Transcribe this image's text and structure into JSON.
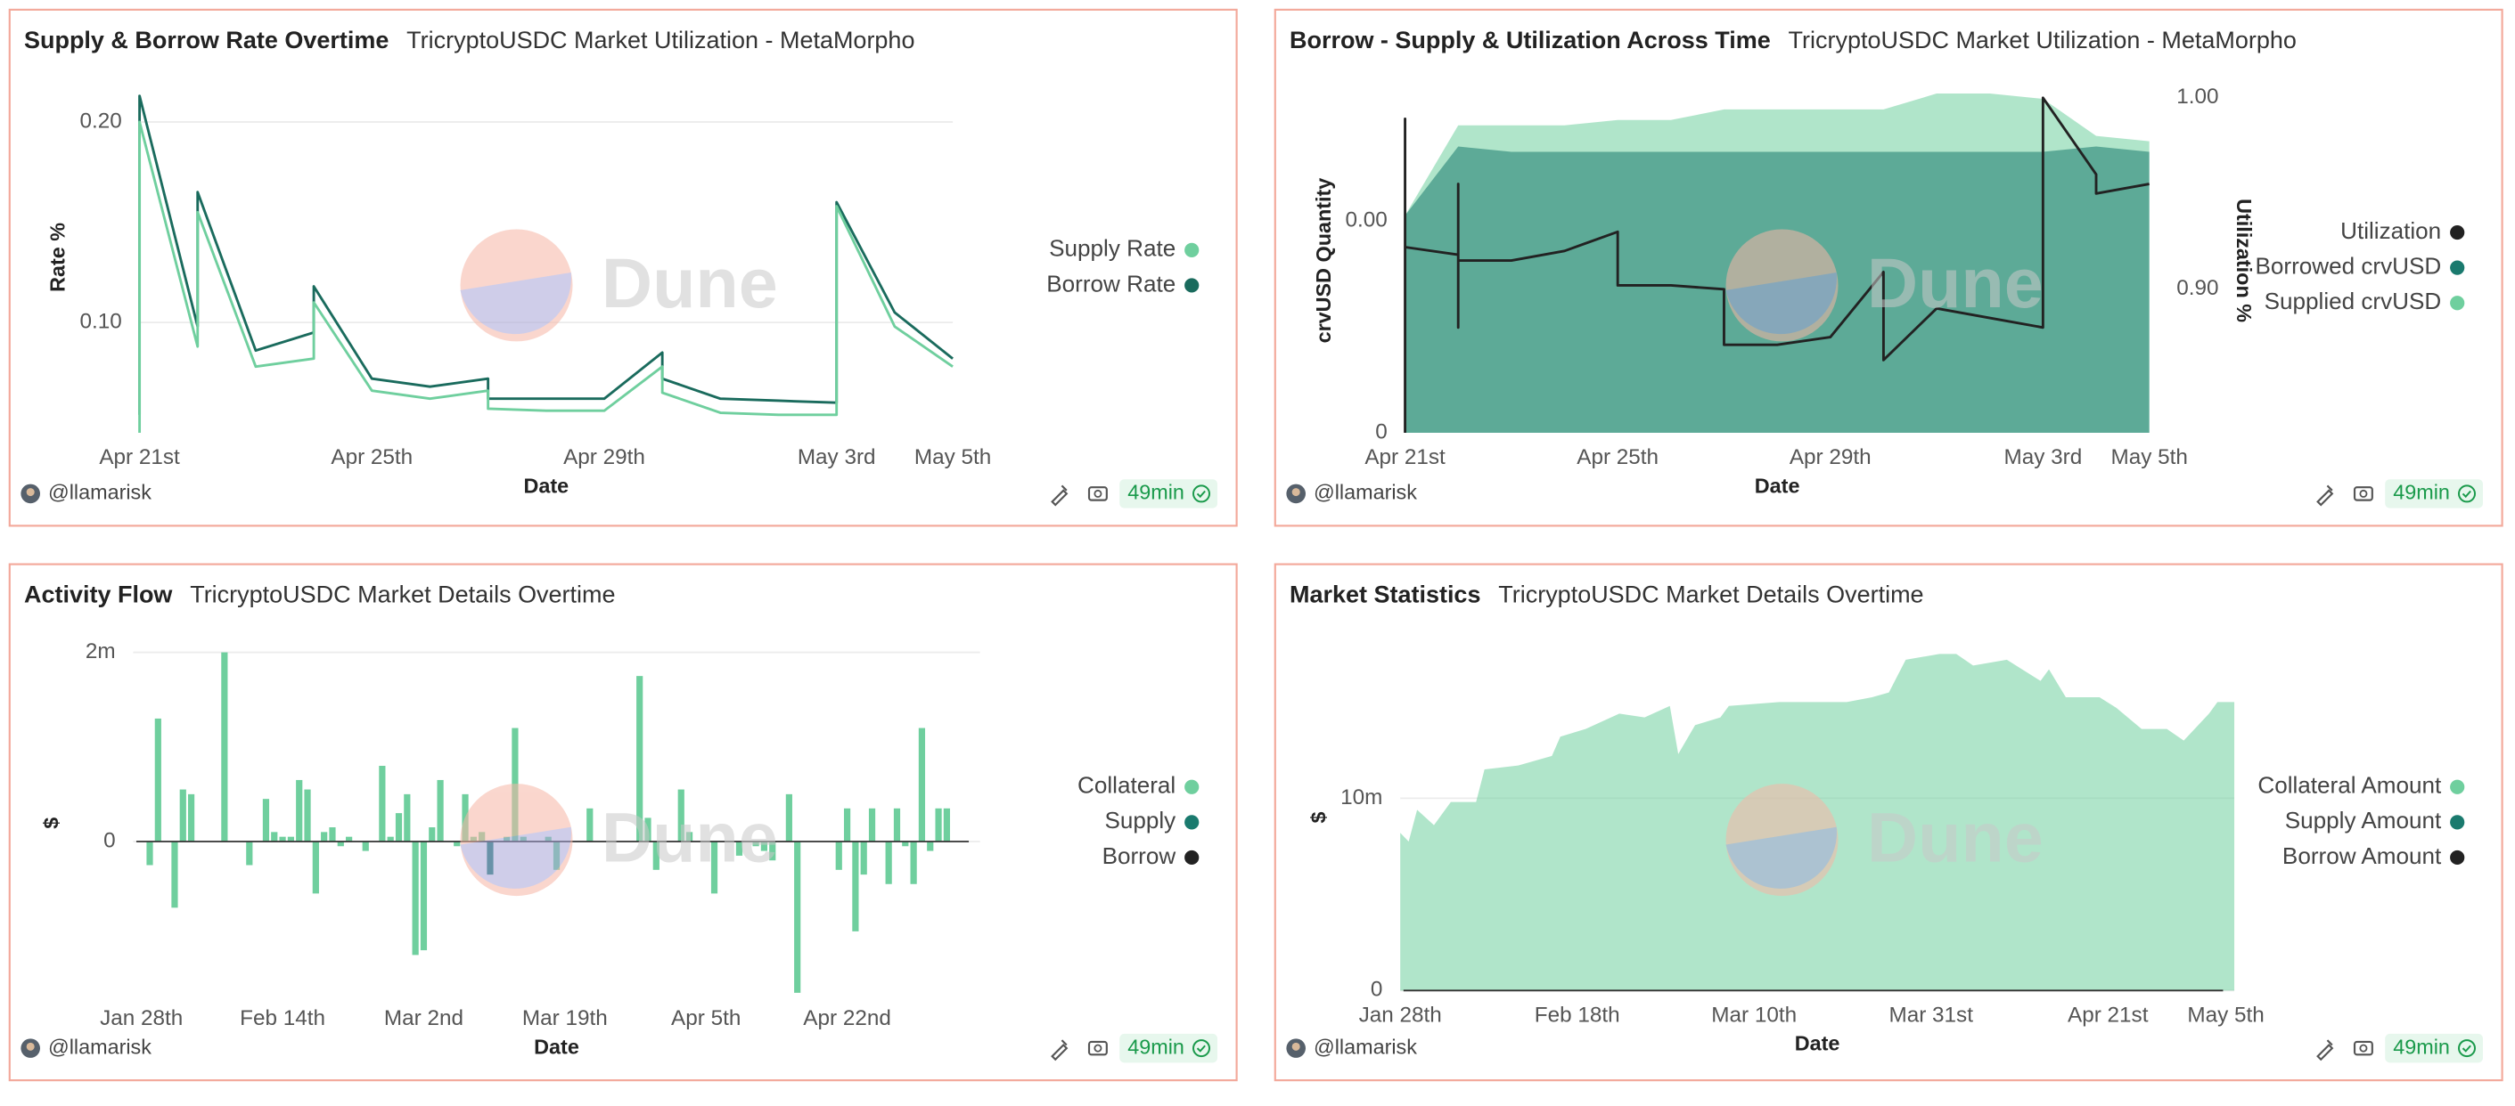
{
  "author": "@llamarisk",
  "last_run": "49min",
  "watermark": "Dune",
  "chart_data": [
    {
      "type": "line",
      "title": "Supply & Borrow Rate Overtime",
      "subtitle": "TricryptoUSDC Market Utilization - MetaMorpho",
      "x_label": "Date",
      "y_label": "Rate %",
      "x": [
        "Apr 21",
        "Apr 21",
        "Apr 22",
        "Apr 22",
        "Apr 23",
        "Apr 24",
        "Apr 24",
        "Apr 25",
        "Apr 26",
        "Apr 27",
        "Apr 27",
        "Apr 28",
        "Apr 29",
        "Apr 30",
        "Apr 30",
        "May 1",
        "May 2",
        "May 3",
        "May 3",
        "May 4",
        "May 5"
      ],
      "xlim": [
        "Apr 21",
        "May 5"
      ],
      "xticks": [
        {
          "value": "Apr 21",
          "label": "Apr 21st"
        },
        {
          "value": "Apr 25",
          "label": "Apr 25th"
        },
        {
          "value": "Apr 29",
          "label": "Apr 29th"
        },
        {
          "value": "May 3",
          "label": "May 3rd"
        },
        {
          "value": "May 5",
          "label": "May 5th"
        }
      ],
      "ylim": [
        0.045,
        0.22
      ],
      "yticks": [
        {
          "value": 0.1,
          "label": "0.10"
        },
        {
          "value": 0.2,
          "label": "0.20"
        }
      ],
      "grid": true,
      "legend": "right",
      "series": [
        {
          "name": "Supply Rate",
          "color": "#6fcf9e",
          "values": [
            0.045,
            0.2,
            0.088,
            0.155,
            0.078,
            0.082,
            0.11,
            0.066,
            0.062,
            0.066,
            0.057,
            0.056,
            0.056,
            0.078,
            0.065,
            0.055,
            0.054,
            0.054,
            0.158,
            0.098,
            0.078
          ]
        },
        {
          "name": "Borrow Rate",
          "color": "#1a6b5d",
          "values": [
            0.054,
            0.213,
            0.098,
            0.165,
            0.086,
            0.095,
            0.118,
            0.072,
            0.068,
            0.072,
            0.062,
            0.062,
            0.062,
            0.085,
            0.072,
            0.062,
            0.061,
            0.06,
            0.16,
            0.105,
            0.082
          ]
        }
      ]
    },
    {
      "type": "area",
      "title": "Borrow - Supply & Utilization Across Time",
      "subtitle": "TricryptoUSDC Market Utilization - MetaMorpho",
      "x_label": "Date",
      "y_label": "crvUSD Quantity",
      "y2_label": "Utilization %",
      "x": [
        "Apr 21",
        "Apr 22",
        "Apr 23",
        "Apr 24",
        "Apr 25",
        "Apr 26",
        "Apr 27",
        "Apr 28",
        "Apr 29",
        "Apr 30",
        "May 1",
        "May 2",
        "May 3",
        "May 4",
        "May 5"
      ],
      "xlim": [
        "Apr 21",
        "May 5"
      ],
      "xticks": [
        {
          "value": "Apr 21",
          "label": "Apr 21st"
        },
        {
          "value": "Apr 25",
          "label": "Apr 25th"
        },
        {
          "value": "Apr 29",
          "label": "Apr 29th"
        },
        {
          "value": "May 3",
          "label": "May 3rd"
        },
        {
          "value": "May 5",
          "label": "May 5th"
        }
      ],
      "ylim": [
        0,
        0.0065
      ],
      "yticks": [
        0,
        {
          "value": 0.004,
          "label": "0.00"
        }
      ],
      "y2lim": [
        0.825,
        1.005
      ],
      "y2ticks": [
        {
          "value": 0.9,
          "label": "0.90"
        },
        {
          "value": 1,
          "label": "1.00"
        }
      ],
      "grid": false,
      "legend": "right",
      "series": [
        {
          "name": "Utilization",
          "color": "#222222",
          "type": "line",
          "axis": "y2",
          "x": [
            "Apr 21",
            "Apr 21",
            "Apr 21",
            "Apr 22",
            "Apr 22",
            "Apr 22",
            "Apr 22",
            "Apr 23",
            "Apr 24",
            "Apr 25",
            "Apr 25",
            "Apr 26",
            "Apr 27",
            "Apr 27",
            "Apr 28",
            "Apr 29",
            "Apr 30",
            "Apr 30",
            "May 1",
            "May 2",
            "May 3",
            "May 3",
            "May 4",
            "May 4",
            "May 5"
          ],
          "values": [
            0.825,
            0.989,
            0.922,
            0.918,
            0.88,
            0.955,
            0.915,
            0.915,
            0.92,
            0.93,
            0.902,
            0.902,
            0.9,
            0.871,
            0.871,
            0.875,
            0.909,
            0.863,
            0.89,
            0.885,
            0.88,
            1.0,
            0.96,
            0.95,
            0.955
          ]
        },
        {
          "name": "Borrowed crvUSD",
          "color": "#1a7a6e",
          "values": [
            0.0041,
            0.0054,
            0.0053,
            0.0053,
            0.0053,
            0.0053,
            0.0053,
            0.0053,
            0.0053,
            0.0053,
            0.0053,
            0.0053,
            0.0053,
            0.0054,
            0.0053
          ]
        },
        {
          "name": "Supplied crvUSD",
          "color": "#6fcf9e",
          "values": [
            0.0041,
            0.0058,
            0.0058,
            0.0058,
            0.0059,
            0.0059,
            0.0061,
            0.0061,
            0.0061,
            0.0061,
            0.0064,
            0.0064,
            0.0063,
            0.0056,
            0.0055
          ]
        }
      ]
    },
    {
      "type": "bar",
      "title": "Activity Flow",
      "subtitle": "TricryptoUSDC Market Details Overtime",
      "x_label": "Date",
      "y_label": "$",
      "x": [
        "Jan 29",
        "Jan 30",
        "Feb 1",
        "Feb 2",
        "Feb 3",
        "Feb 7",
        "Feb 10",
        "Feb 12",
        "Feb 13",
        "Feb 14",
        "Feb 15",
        "Feb 16",
        "Feb 17",
        "Feb 18",
        "Feb 19",
        "Feb 20",
        "Feb 21",
        "Feb 22",
        "Feb 24",
        "Feb 26",
        "Feb 27",
        "Feb 28",
        "Feb 29",
        "Mar 1",
        "Mar 2",
        "Mar 3",
        "Mar 4",
        "Mar 6",
        "Mar 7",
        "Mar 8",
        "Mar 9",
        "Mar 10",
        "Mar 12",
        "Mar 13",
        "Mar 14",
        "Mar 17",
        "Mar 18",
        "Mar 22",
        "Mar 28",
        "Mar 29",
        "Mar 30",
        "Apr 2",
        "Apr 3",
        "Apr 6",
        "Apr 9",
        "Apr 11",
        "Apr 12",
        "Apr 13",
        "Apr 15",
        "Apr 16",
        "Apr 21",
        "Apr 22",
        "Apr 23",
        "Apr 24",
        "Apr 25",
        "Apr 27",
        "Apr 28",
        "Apr 29",
        "Apr 30",
        "May 1",
        "May 2",
        "May 3",
        "May 4"
      ],
      "xlim": [
        "Jan 27",
        "May 8"
      ],
      "xticks": [
        {
          "value": "Jan 28",
          "label": "Jan 28th"
        },
        {
          "value": "Feb 14",
          "label": "Feb 14th"
        },
        {
          "value": "Mar 2",
          "label": "Mar 2nd"
        },
        {
          "value": "Mar 19",
          "label": "Mar 19th"
        },
        {
          "value": "Apr 5",
          "label": "Apr 5th"
        },
        {
          "value": "Apr 22",
          "label": "Apr 22nd"
        }
      ],
      "ylim": [
        -1610000,
        2000000
      ],
      "yticks": [
        0,
        {
          "value": 2000000,
          "label": "2m"
        }
      ],
      "grid": true,
      "legend": "right",
      "series": [
        {
          "name": "Collateral",
          "color": "#6fcf9e",
          "values": [
            -250000,
            1300000,
            -700000,
            550000,
            500000,
            2000000,
            -250000,
            450000,
            100000,
            50000,
            50000,
            650000,
            550000,
            -550000,
            100000,
            150000,
            -50000,
            50000,
            -100000,
            800000,
            50000,
            300000,
            500000,
            -1200000,
            -1150000,
            150000,
            650000,
            -50000,
            500000,
            50000,
            100000,
            null,
            50000,
            1200000,
            50000,
            50000,
            -300000,
            350000,
            1750000,
            250000,
            -300000,
            550000,
            100000,
            -550000,
            -150000,
            -50000,
            -100000,
            -200000,
            500000,
            -1600000,
            -300000,
            350000,
            -950000,
            -350000,
            350000,
            -450000,
            350000,
            -50000,
            -450000,
            1200000,
            -100000,
            350000,
            350000
          ]
        },
        {
          "name": "Supply",
          "color": "#1a7a6e",
          "values": [
            null,
            null,
            null,
            null,
            null,
            null,
            null,
            null,
            null,
            null,
            null,
            null,
            null,
            null,
            null,
            null,
            null,
            null,
            null,
            null,
            null,
            null,
            null,
            null,
            null,
            null,
            null,
            null,
            null,
            null,
            null,
            -350000,
            null,
            null,
            null,
            null,
            null,
            null,
            null,
            null,
            null,
            null,
            null,
            null,
            null,
            null,
            null,
            null,
            null,
            null,
            null,
            null,
            null,
            null,
            null,
            null,
            null,
            null,
            null,
            null,
            null,
            null,
            null
          ]
        },
        {
          "name": "Borrow",
          "color": "#222222",
          "values": [
            null,
            null,
            null,
            null,
            null,
            null,
            null,
            null,
            null,
            null,
            null,
            null,
            null,
            null,
            null,
            null,
            null,
            null,
            null,
            null,
            null,
            null,
            null,
            null,
            null,
            null,
            null,
            null,
            null,
            null,
            null,
            null,
            null,
            null,
            null,
            null,
            null,
            null,
            null,
            null,
            null,
            null,
            null,
            null,
            null,
            null,
            null,
            null,
            null,
            null,
            null,
            null,
            null,
            null,
            null,
            null,
            null,
            null,
            null,
            null,
            null,
            null,
            null
          ]
        }
      ]
    },
    {
      "type": "area",
      "title": "Market Statistics",
      "subtitle": "TricryptoUSDC Market Details Overtime",
      "x_label": "Date",
      "y_label": "$",
      "x": [
        "Jan 28",
        "Jan 29",
        "Jan 30",
        "Feb 1",
        "Feb 3",
        "Feb 6",
        "Feb 7",
        "Feb 11",
        "Feb 15",
        "Feb 16",
        "Feb 19",
        "Feb 23",
        "Feb 26",
        "Feb 29",
        "Mar 1",
        "Mar 3",
        "Mar 6",
        "Mar 7",
        "Mar 13",
        "Mar 21",
        "Mar 24",
        "Mar 26",
        "Mar 28",
        "Apr 1",
        "Apr 3",
        "Apr 5",
        "Apr 9",
        "Apr 13",
        "Apr 14",
        "Apr 16",
        "Apr 20",
        "Apr 22",
        "Apr 25",
        "Apr 28",
        "Apr 30",
        "May 3",
        "May 4",
        "May 6"
      ],
      "xlim": [
        "Jan 28",
        "May 6"
      ],
      "xticks": [
        {
          "value": "Jan 28",
          "label": "Jan 28th"
        },
        {
          "value": "Feb 18",
          "label": "Feb 18th"
        },
        {
          "value": "Mar 10",
          "label": "Mar 10th"
        },
        {
          "value": "Mar 31",
          "label": "Mar 31st"
        },
        {
          "value": "Apr 21",
          "label": "Apr 21st"
        },
        {
          "value": "May 5",
          "label": "May 5th"
        }
      ],
      "ylim": [
        0,
        18000000
      ],
      "yticks": [
        0,
        {
          "value": 10000000,
          "label": "10m"
        }
      ],
      "grid": true,
      "legend": "right",
      "series": [
        {
          "name": "Collateral Amount",
          "color": "#6fcf9e",
          "values": [
            8200000,
            7750000,
            9400000,
            8600000,
            9800000,
            9800000,
            11500000,
            11700000,
            12200000,
            13200000,
            13600000,
            14400000,
            14200000,
            14800000,
            12300000,
            13800000,
            14200000,
            14800000,
            15000000,
            15000000,
            15250000,
            15500000,
            17200000,
            17500000,
            17500000,
            16900000,
            17200000,
            16100000,
            16700000,
            15250000,
            15250000,
            14700000,
            13600000,
            13600000,
            13000000,
            14400000,
            15000000,
            15000000
          ]
        },
        {
          "name": "Supply Amount",
          "color": "#1a7a6e",
          "values": [
            null,
            null,
            null,
            null,
            null,
            null,
            null,
            null,
            null,
            null,
            null,
            null,
            null,
            null,
            null,
            null,
            null,
            null,
            null,
            null,
            null,
            null,
            null,
            null,
            null,
            null,
            null,
            null,
            null,
            null,
            null,
            null,
            null,
            null,
            null,
            null,
            null,
            null
          ]
        },
        {
          "name": "Borrow Amount",
          "color": "#222222",
          "values": [
            null,
            null,
            null,
            null,
            null,
            null,
            null,
            null,
            null,
            null,
            null,
            null,
            null,
            null,
            null,
            null,
            null,
            null,
            null,
            null,
            null,
            null,
            null,
            null,
            null,
            null,
            null,
            null,
            null,
            null,
            null,
            null,
            null,
            null,
            null,
            null,
            null,
            null
          ]
        }
      ]
    }
  ]
}
